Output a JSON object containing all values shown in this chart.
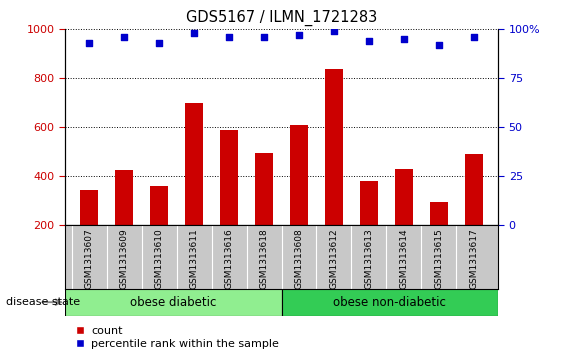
{
  "title": "GDS5167 / ILMN_1721283",
  "samples": [
    "GSM1313607",
    "GSM1313609",
    "GSM1313610",
    "GSM1313611",
    "GSM1313616",
    "GSM1313618",
    "GSM1313608",
    "GSM1313612",
    "GSM1313613",
    "GSM1313614",
    "GSM1313615",
    "GSM1313617"
  ],
  "counts": [
    345,
    425,
    360,
    700,
    590,
    495,
    610,
    835,
    380,
    430,
    295,
    490
  ],
  "percentiles": [
    93,
    96,
    93,
    98,
    96,
    96,
    97,
    99,
    94,
    95,
    92,
    96
  ],
  "bar_color": "#cc0000",
  "dot_color": "#0000cc",
  "ylim_left": [
    200,
    1000
  ],
  "ylim_right": [
    0,
    100
  ],
  "yticks_left": [
    200,
    400,
    600,
    800,
    1000
  ],
  "yticks_right": [
    0,
    25,
    50,
    75,
    100
  ],
  "group1_label": "obese diabetic",
  "group2_label": "obese non-diabetic",
  "group1_count": 6,
  "group2_count": 6,
  "group1_color": "#90ee90",
  "group2_color": "#33cc55",
  "disease_state_label": "disease state",
  "legend_count_label": "count",
  "legend_percentile_label": "percentile rank within the sample",
  "xtick_bg_color": "#c8c8c8",
  "bar_width": 0.5
}
